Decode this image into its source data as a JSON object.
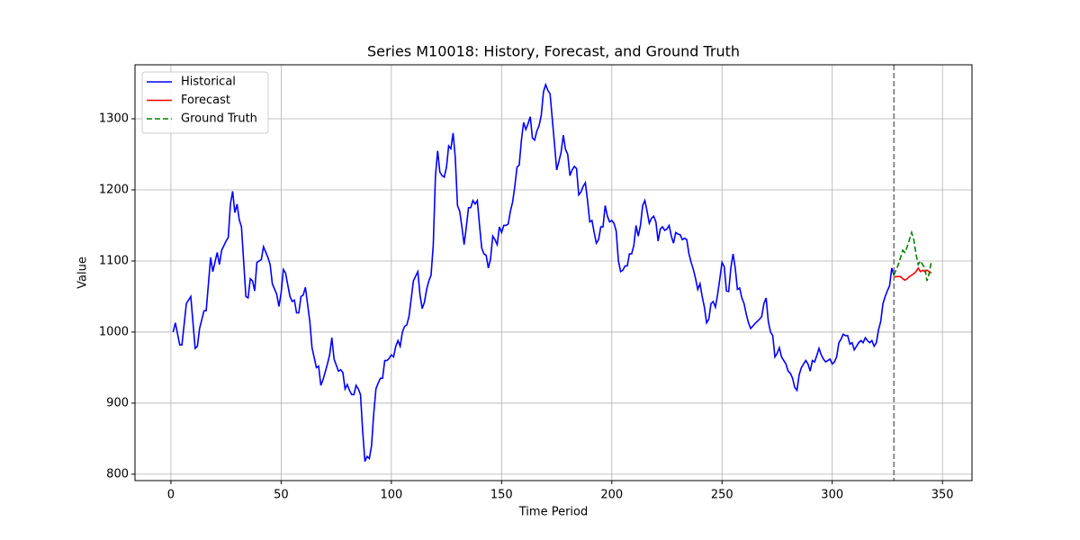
{
  "chart_data": {
    "type": "line",
    "title": "Series M10018: History, Forecast, and Ground Truth",
    "x_label": "Time Period",
    "y_label": "Value",
    "xlim": [
      -16.3,
      363.4
    ],
    "ylim": [
      791,
      1376
    ],
    "xticks": [
      0,
      50,
      100,
      150,
      200,
      250,
      300,
      350
    ],
    "yticks": [
      800,
      900,
      1000,
      1100,
      1200,
      1300
    ],
    "grid": true,
    "legend": "upper-left",
    "vline_x": 328,
    "series": [
      {
        "name": "Historical",
        "color": "#0000ff",
        "linestyle": "solid",
        "x": [
          1,
          2,
          4,
          5,
          7,
          9,
          11,
          12,
          13,
          15,
          16,
          18,
          19,
          21,
          22,
          23,
          25,
          26,
          27,
          28,
          29,
          30,
          31,
          32,
          34,
          35,
          36,
          37,
          38,
          39,
          41,
          42,
          44,
          45,
          46,
          48,
          49,
          50,
          51,
          52,
          54,
          55,
          56,
          57,
          58,
          59,
          60,
          61,
          63,
          64,
          66,
          67,
          68,
          69,
          71,
          72,
          73,
          74,
          76,
          77,
          78,
          79,
          80,
          81,
          82,
          83,
          84,
          85,
          86,
          87,
          88,
          89,
          90,
          91,
          92,
          93,
          94,
          95,
          96,
          97,
          98,
          99,
          100,
          101,
          102,
          103,
          104,
          105,
          106,
          107,
          108,
          110,
          112,
          113,
          114,
          115,
          116,
          117,
          118,
          119,
          120,
          121,
          122,
          123,
          124,
          125,
          126,
          127,
          128,
          129,
          130,
          131,
          132,
          133,
          134,
          135,
          136,
          137,
          138,
          139,
          140,
          141,
          142,
          143,
          144,
          145,
          146,
          147,
          148,
          149,
          150,
          151,
          152,
          153,
          154,
          155,
          156,
          157,
          158,
          159,
          160,
          161,
          162,
          163,
          164,
          165,
          166,
          167,
          168,
          169,
          170,
          171,
          172,
          173,
          174,
          175,
          176,
          177,
          178,
          179,
          180,
          181,
          182,
          183,
          184,
          185,
          186,
          187,
          188,
          189,
          190,
          191,
          192,
          193,
          194,
          195,
          196,
          197,
          198,
          199,
          200,
          201,
          202,
          203,
          204,
          205,
          206,
          207,
          208,
          209,
          210,
          211,
          212,
          213,
          214,
          215,
          216,
          217,
          218,
          219,
          220,
          221,
          222,
          223,
          224,
          225,
          226,
          227,
          228,
          229,
          230,
          231,
          232,
          233,
          234,
          235,
          236,
          237,
          238,
          239,
          240,
          241,
          242,
          243,
          244,
          245,
          246,
          247,
          248,
          249,
          250,
          251,
          252,
          253,
          254,
          255,
          256,
          257,
          258,
          259,
          260,
          261,
          262,
          263,
          265,
          267,
          268,
          269,
          270,
          271,
          272,
          273,
          274,
          275,
          276,
          277,
          278,
          279,
          280,
          281,
          282,
          283,
          284,
          285,
          286,
          287,
          288,
          289,
          290,
          291,
          292,
          293,
          294,
          295,
          296,
          297,
          298,
          299,
          300,
          301,
          302,
          303,
          304,
          305,
          306,
          307,
          308,
          309,
          310,
          311,
          312,
          313,
          314,
          315,
          316,
          317,
          318,
          319,
          320,
          321,
          322,
          323,
          324,
          325,
          326,
          327,
          328
        ],
        "values": [
          1000,
          1013,
          982,
          982,
          1040,
          1050,
          977,
          980,
          1005,
          1030,
          1030,
          1105,
          1085,
          1112,
          1095,
          1115,
          1128,
          1133,
          1180,
          1198,
          1168,
          1180,
          1158,
          1148,
          1050,
          1048,
          1075,
          1072,
          1058,
          1098,
          1102,
          1120,
          1105,
          1095,
          1068,
          1053,
          1036,
          1055,
          1088,
          1083,
          1050,
          1043,
          1045,
          1027,
          1027,
          1050,
          1052,
          1063,
          1015,
          978,
          950,
          952,
          925,
          933,
          955,
          968,
          992,
          962,
          945,
          947,
          943,
          920,
          926,
          918,
          912,
          912,
          925,
          920,
          912,
          860,
          818,
          825,
          822,
          840,
          885,
          920,
          928,
          935,
          935,
          960,
          960,
          963,
          968,
          965,
          980,
          988,
          980,
          1000,
          1008,
          1010,
          1022,
          1072,
          1085,
          1052,
          1033,
          1042,
          1060,
          1072,
          1080,
          1122,
          1220,
          1255,
          1225,
          1220,
          1218,
          1232,
          1262,
          1258,
          1280,
          1245,
          1178,
          1170,
          1148,
          1123,
          1148,
          1175,
          1175,
          1185,
          1180,
          1185,
          1150,
          1118,
          1110,
          1108,
          1090,
          1103,
          1135,
          1130,
          1123,
          1148,
          1140,
          1150,
          1150,
          1152,
          1170,
          1183,
          1205,
          1232,
          1235,
          1270,
          1295,
          1285,
          1293,
          1303,
          1273,
          1270,
          1283,
          1290,
          1305,
          1338,
          1348,
          1340,
          1335,
          1300,
          1265,
          1228,
          1240,
          1253,
          1277,
          1257,
          1250,
          1220,
          1228,
          1233,
          1230,
          1193,
          1197,
          1205,
          1210,
          1185,
          1155,
          1157,
          1140,
          1125,
          1130,
          1148,
          1148,
          1178,
          1163,
          1155,
          1157,
          1153,
          1142,
          1100,
          1085,
          1087,
          1093,
          1093,
          1110,
          1110,
          1122,
          1150,
          1135,
          1150,
          1178,
          1185,
          1170,
          1153,
          1160,
          1163,
          1155,
          1128,
          1145,
          1148,
          1143,
          1145,
          1150,
          1135,
          1125,
          1140,
          1138,
          1137,
          1130,
          1132,
          1130,
          1110,
          1098,
          1088,
          1075,
          1060,
          1068,
          1050,
          1035,
          1013,
          1018,
          1040,
          1043,
          1035,
          1053,
          1075,
          1098,
          1092,
          1058,
          1057,
          1090,
          1110,
          1090,
          1060,
          1062,
          1048,
          1040,
          1025,
          1013,
          1005,
          1012,
          1018,
          1022,
          1040,
          1048,
          1015,
          1000,
          995,
          965,
          970,
          978,
          965,
          960,
          955,
          945,
          942,
          935,
          922,
          918,
          940,
          950,
          955,
          960,
          955,
          945,
          960,
          958,
          967,
          977,
          968,
          962,
          958,
          960,
          962,
          955,
          958,
          965,
          985,
          990,
          997,
          995,
          995,
          983,
          985,
          975,
          980,
          985,
          988,
          985,
          992,
          988,
          985,
          988,
          980,
          985,
          1003,
          1015,
          1040,
          1050,
          1058,
          1065,
          1090,
          1080
        ]
      },
      {
        "name": "Forecast",
        "color": "#ff0000",
        "linestyle": "solid",
        "x": [
          328,
          329,
          330,
          331,
          332,
          333,
          334,
          335,
          336,
          337,
          338,
          339,
          340,
          341,
          342,
          343,
          344,
          345
        ],
        "values": [
          1077,
          1078,
          1078,
          1078,
          1075,
          1073,
          1075,
          1078,
          1080,
          1082,
          1085,
          1090,
          1085,
          1087,
          1085,
          1087,
          1085,
          1083
        ]
      },
      {
        "name": "Ground Truth",
        "color": "#008000",
        "linestyle": "dashed",
        "x": [
          328,
          329,
          330,
          331,
          332,
          333,
          334,
          335,
          336,
          337,
          338,
          339,
          340,
          341,
          342,
          343,
          344,
          345
        ],
        "values": [
          1080,
          1088,
          1095,
          1105,
          1115,
          1112,
          1120,
          1130,
          1140,
          1130,
          1110,
          1095,
          1100,
          1095,
          1090,
          1072,
          1083,
          1100
        ]
      }
    ]
  }
}
